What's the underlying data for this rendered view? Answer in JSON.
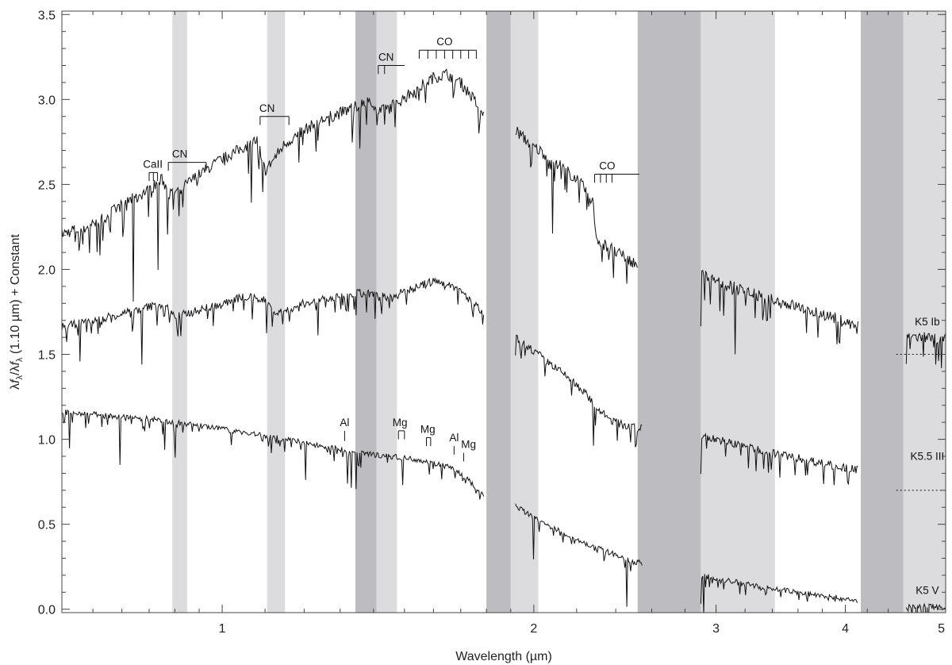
{
  "chart_data": {
    "type": "line",
    "xlabel": "Wavelength (µm)",
    "ylabel": "λ f_λ / λ f_λ (1.10 µm) + Constant",
    "ylabel_parts": {
      "lambda1": "λ",
      "f1": "f",
      "sub1": "λ",
      "slash": "/",
      "lambda2": "λ",
      "f2": "f",
      "sub2": "λ",
      "rest": " (1.10 µm) + Constant"
    },
    "xscale": "log",
    "xlim": [
      0.7,
      5.0
    ],
    "ylim": [
      -0.02,
      3.52
    ],
    "xticks": [
      {
        "value": 1,
        "label": "1"
      },
      {
        "value": 2,
        "label": "2"
      },
      {
        "value": 3,
        "label": "3"
      },
      {
        "value": 4,
        "label": "4"
      },
      {
        "value": 5,
        "label": "5"
      }
    ],
    "yticks": [
      {
        "value": 0.0,
        "label": "0.0"
      },
      {
        "value": 0.5,
        "label": "0.5"
      },
      {
        "value": 1.0,
        "label": "1.0"
      },
      {
        "value": 1.5,
        "label": "1.5"
      },
      {
        "value": 2.0,
        "label": "2.0"
      },
      {
        "value": 2.5,
        "label": "2.5"
      },
      {
        "value": 3.0,
        "label": "3.0"
      },
      {
        "value": 3.5,
        "label": "3.5"
      }
    ],
    "telluric_bands": [
      {
        "x0": 0.895,
        "x1": 0.925,
        "shade": "light"
      },
      {
        "x0": 1.105,
        "x1": 1.15,
        "shade": "light"
      },
      {
        "x0": 1.345,
        "x1": 1.41,
        "shade": "dark"
      },
      {
        "x0": 1.41,
        "x1": 1.475,
        "shade": "light"
      },
      {
        "x0": 1.8,
        "x1": 1.9,
        "shade": "dark"
      },
      {
        "x0": 1.9,
        "x1": 2.02,
        "shade": "light"
      },
      {
        "x0": 2.52,
        "x1": 2.9,
        "shade": "dark"
      },
      {
        "x0": 2.9,
        "x1": 3.42,
        "shade": "light"
      },
      {
        "x0": 4.14,
        "x1": 4.55,
        "shade": "dark"
      },
      {
        "x0": 4.55,
        "x1": 5.0,
        "shade": "light"
      }
    ],
    "band_colors": {
      "light": "#dcdcde",
      "dark": "#bdbdc1"
    },
    "series": [
      {
        "name": "K5 Ib",
        "color": "#111111",
        "zero_offset": 1.5,
        "segments": [
          {
            "x": [
              0.7,
              0.75,
              0.8,
              0.85,
              0.875,
              0.89,
              0.91,
              0.95,
              1.0,
              1.05,
              1.08,
              1.1,
              1.15,
              1.2,
              1.25,
              1.3,
              1.35,
              1.39,
              1.41,
              1.45,
              1.5,
              1.55,
              1.6,
              1.65,
              1.7,
              1.75,
              1.79
            ],
            "y": [
              2.21,
              2.26,
              2.38,
              2.47,
              2.53,
              2.44,
              2.47,
              2.56,
              2.65,
              2.72,
              2.76,
              2.58,
              2.74,
              2.82,
              2.88,
              2.92,
              2.96,
              3.01,
              2.92,
              2.95,
              3.01,
              3.07,
              3.13,
              3.15,
              3.1,
              3.0,
              2.9
            ]
          },
          {
            "x": [
              1.92,
              1.95,
              2.0,
              2.05,
              2.1,
              2.15,
              2.2,
              2.25,
              2.28,
              2.3,
              2.35,
              2.4,
              2.45,
              2.5,
              2.52
            ],
            "y": [
              2.82,
              2.78,
              2.72,
              2.68,
              2.63,
              2.58,
              2.53,
              2.46,
              2.4,
              2.18,
              2.14,
              2.1,
              2.07,
              2.04,
              2.02
            ]
          },
          {
            "x": [
              2.9,
              3.0,
              3.2,
              3.4,
              3.6,
              3.8,
              4.0,
              4.12
            ],
            "y": [
              1.97,
              1.93,
              1.87,
              1.82,
              1.78,
              1.74,
              1.69,
              1.66
            ]
          },
          {
            "x": [
              4.58,
              4.75,
              5.0
            ],
            "y": [
              1.61,
              1.6,
              1.59
            ]
          }
        ]
      },
      {
        "name": "K5.5 III",
        "color": "#111111",
        "zero_offset": 0.7,
        "segments": [
          {
            "x": [
              0.7,
              0.75,
              0.8,
              0.85,
              0.88,
              0.9,
              0.95,
              1.0,
              1.05,
              1.1,
              1.13,
              1.2,
              1.3,
              1.35,
              1.4,
              1.45,
              1.5,
              1.55,
              1.6,
              1.65,
              1.7,
              1.75,
              1.79
            ],
            "y": [
              1.66,
              1.7,
              1.74,
              1.78,
              1.8,
              1.72,
              1.76,
              1.8,
              1.84,
              1.82,
              1.74,
              1.8,
              1.84,
              1.86,
              1.85,
              1.83,
              1.87,
              1.9,
              1.93,
              1.92,
              1.87,
              1.8,
              1.73
            ]
          },
          {
            "x": [
              1.92,
              1.95,
              2.0,
              2.05,
              2.1,
              2.15,
              2.2,
              2.25,
              2.3,
              2.35,
              2.4,
              2.45,
              2.5,
              2.55
            ],
            "y": [
              1.6,
              1.57,
              1.52,
              1.47,
              1.42,
              1.37,
              1.32,
              1.26,
              1.19,
              1.13,
              1.1,
              1.08,
              1.07,
              1.06
            ]
          },
          {
            "x": [
              2.9,
              3.0,
              3.2,
              3.4,
              3.6,
              3.8,
              4.0,
              4.12
            ],
            "y": [
              1.02,
              1.0,
              0.96,
              0.92,
              0.89,
              0.86,
              0.83,
              0.82
            ]
          }
        ]
      },
      {
        "name": "K5 V",
        "color": "#111111",
        "zero_offset": 0.0,
        "segments": [
          {
            "x": [
              0.7,
              0.75,
              0.8,
              0.85,
              0.9,
              0.95,
              1.0,
              1.05,
              1.1,
              1.15,
              1.2,
              1.25,
              1.3,
              1.35,
              1.4,
              1.45,
              1.5,
              1.55,
              1.6,
              1.65,
              1.7,
              1.75,
              1.79
            ],
            "y": [
              1.16,
              1.15,
              1.13,
              1.12,
              1.1,
              1.08,
              1.06,
              1.04,
              1.02,
              1.0,
              0.98,
              0.96,
              0.94,
              0.92,
              0.91,
              0.9,
              0.89,
              0.88,
              0.86,
              0.84,
              0.8,
              0.73,
              0.66
            ]
          },
          {
            "x": [
              1.92,
              2.0,
              2.1,
              2.2,
              2.3,
              2.4,
              2.5,
              2.55
            ],
            "y": [
              0.61,
              0.54,
              0.47,
              0.41,
              0.36,
              0.32,
              0.28,
              0.27
            ]
          },
          {
            "x": [
              2.9,
              3.0,
              3.2,
              3.4,
              3.6,
              3.8,
              4.0,
              4.12
            ],
            "y": [
              0.2,
              0.18,
              0.15,
              0.12,
              0.1,
              0.08,
              0.06,
              0.05
            ]
          },
          {
            "x": [
              4.58,
              4.75,
              5.0
            ],
            "y": [
              0.02,
              0.02,
              0.01
            ]
          }
        ]
      }
    ],
    "annotations": [
      {
        "label": "CaII",
        "kind": "multi",
        "x": [
          0.85,
          0.866
        ],
        "x_label": 0.857,
        "y_top": 2.57,
        "y_bottom": 2.52
      },
      {
        "label": "CN",
        "kind": "bracket",
        "x": [
          0.887,
          0.965
        ],
        "x_label": 0.91,
        "y_top": 2.63,
        "y_bottom": 2.58
      },
      {
        "label": "CN",
        "kind": "bracket",
        "x": [
          1.088,
          1.16
        ],
        "x_label": 1.105,
        "y_top": 2.9,
        "y_bottom": 2.85
      },
      {
        "label": "CN",
        "kind": "bracket",
        "x": [
          1.415,
          1.5,
          1.435
        ],
        "x_label": 1.44,
        "y_top": 3.2,
        "y_bottom": 3.15
      },
      {
        "label": "CO",
        "kind": "comb",
        "x": [
          1.55,
          1.58,
          1.61,
          1.64,
          1.67,
          1.7,
          1.73,
          1.76
        ],
        "x_label": 1.64,
        "y_top": 3.29,
        "y_bottom": 3.24
      },
      {
        "label": "CO",
        "kind": "comb",
        "x": [
          2.29,
          2.32,
          2.35,
          2.38,
          2.53
        ],
        "x_label": 2.355,
        "y_top": 2.56,
        "y_bottom": 2.51
      },
      {
        "label": "Al",
        "kind": "tick",
        "x": [
          1.313
        ],
        "x_label": 1.313,
        "y_top": 1.05,
        "y_bottom": 0.99
      },
      {
        "label": "Mg",
        "kind": "bracket",
        "x": [
          1.48,
          1.5
        ],
        "x_label": 1.485,
        "y_top": 1.05,
        "y_bottom": 1.0
      },
      {
        "label": "Mg",
        "kind": "bracket",
        "x": [
          1.575,
          1.59
        ],
        "x_label": 1.58,
        "y_top": 1.01,
        "y_bottom": 0.96
      },
      {
        "label": "Al",
        "kind": "tick",
        "x": [
          1.675
        ],
        "x_label": 1.675,
        "y_top": 0.96,
        "y_bottom": 0.91
      },
      {
        "label": "Mg",
        "kind": "tick",
        "x": [
          1.711
        ],
        "x_label": 1.73,
        "y_top": 0.92,
        "y_bottom": 0.87
      }
    ],
    "series_labels": [
      {
        "text": "K5 Ib",
        "x": 4.8,
        "y": 1.67
      },
      {
        "text": "K5.5 III",
        "x": 4.8,
        "y": 0.88
      },
      {
        "text": "K5 V",
        "x": 4.8,
        "y": 0.09
      }
    ],
    "legend": "none",
    "grid": false
  }
}
